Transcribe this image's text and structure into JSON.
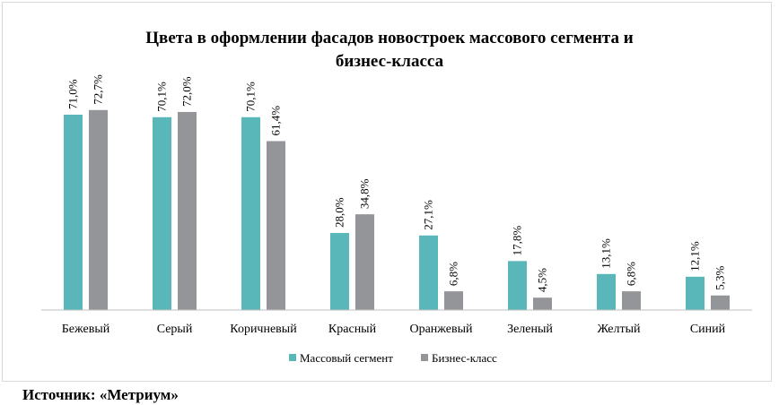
{
  "chart_data": {
    "type": "bar",
    "title_lines": [
      "Цвета в оформлении фасадов новостроек массового сегмента и",
      "бизнес-класса"
    ],
    "categories": [
      "Бежевый",
      "Серый",
      "Коричневый",
      "Красный",
      "Оранжевый",
      "Зеленый",
      "Желтый",
      "Синий"
    ],
    "series": [
      {
        "name": "Массовый сегмент",
        "color": "#5ab7b9",
        "values": [
          71.0,
          70.1,
          70.1,
          28.0,
          27.1,
          17.8,
          13.1,
          12.1
        ],
        "labels": [
          "71,0%",
          "70,1%",
          "70,1%",
          "28,0%",
          "27,1%",
          "17,8%",
          "13,1%",
          "12,1%"
        ]
      },
      {
        "name": "Бизнес-класс",
        "color": "#939598",
        "values": [
          72.7,
          72.0,
          61.4,
          34.8,
          6.8,
          4.5,
          6.8,
          5.3
        ],
        "labels": [
          "72,7%",
          "72,0%",
          "61,4%",
          "34,8%",
          "6,8%",
          "4,5%",
          "6,8%",
          "5,3%"
        ]
      }
    ],
    "ylim": [
      0,
      100
    ],
    "grid": false,
    "legend_position": "bottom"
  },
  "source": "Источник: «Метриум»"
}
